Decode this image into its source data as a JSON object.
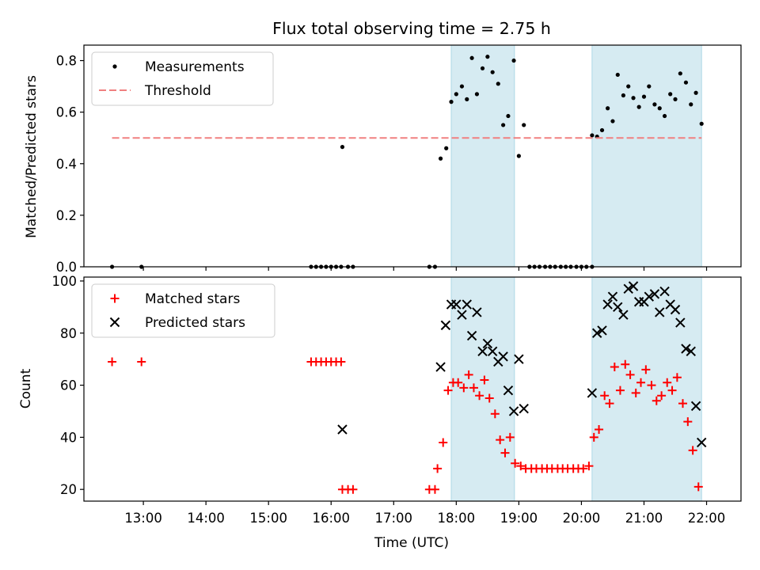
{
  "chart_data": {
    "title": "Flux total observing time = 2.75 h",
    "xlabel": "Time (UTC)",
    "xlim": [
      12.05,
      22.55
    ],
    "xticks": [
      "13:00",
      "14:00",
      "15:00",
      "16:00",
      "17:00",
      "18:00",
      "19:00",
      "20:00",
      "21:00",
      "22:00"
    ],
    "xtick_values": [
      13,
      14,
      15,
      16,
      17,
      18,
      19,
      20,
      21,
      22
    ],
    "shaded_intervals": [
      [
        17.92,
        18.93
      ],
      [
        20.17,
        21.92
      ]
    ],
    "shade_color": "#add8e6",
    "panels": [
      {
        "type": "scatter",
        "ylabel": "Matched/Predicted stars",
        "ylim": [
          0,
          0.86
        ],
        "yticks": [
          "0.0",
          "0.2",
          "0.4",
          "0.6",
          "0.8"
        ],
        "ytick_values": [
          0,
          0.2,
          0.4,
          0.6,
          0.8
        ],
        "legend_position": "upper-left",
        "series": [
          {
            "name": "Measurements",
            "kind": "dots",
            "color": "#000000",
            "points": [
              [
                12.5,
                0
              ],
              [
                12.97,
                0
              ],
              [
                15.68,
                0
              ],
              [
                15.76,
                0
              ],
              [
                15.84,
                0
              ],
              [
                15.92,
                0
              ],
              [
                16.0,
                0
              ],
              [
                16.08,
                0
              ],
              [
                16.16,
                0
              ],
              [
                16.18,
                0.465
              ],
              [
                16.27,
                0
              ],
              [
                16.35,
                0
              ],
              [
                17.57,
                0
              ],
              [
                17.66,
                0
              ],
              [
                17.75,
                0.42
              ],
              [
                17.84,
                0.46
              ],
              [
                17.92,
                0.64
              ],
              [
                18.0,
                0.67
              ],
              [
                18.09,
                0.7
              ],
              [
                18.17,
                0.65
              ],
              [
                18.25,
                0.81
              ],
              [
                18.33,
                0.67
              ],
              [
                18.42,
                0.77
              ],
              [
                18.5,
                0.815
              ],
              [
                18.58,
                0.755
              ],
              [
                18.67,
                0.71
              ],
              [
                18.75,
                0.55
              ],
              [
                18.83,
                0.585
              ],
              [
                18.92,
                0.8
              ],
              [
                19.0,
                0.43
              ],
              [
                19.08,
                0.55
              ],
              [
                19.17,
                0
              ],
              [
                19.25,
                0
              ],
              [
                19.33,
                0
              ],
              [
                19.42,
                0
              ],
              [
                19.5,
                0
              ],
              [
                19.58,
                0
              ],
              [
                19.67,
                0
              ],
              [
                19.75,
                0
              ],
              [
                19.83,
                0
              ],
              [
                19.92,
                0
              ],
              [
                20.0,
                0
              ],
              [
                20.08,
                0
              ],
              [
                20.17,
                0
              ],
              [
                20.17,
                0.51
              ],
              [
                20.25,
                0.505
              ],
              [
                20.33,
                0.53
              ],
              [
                20.42,
                0.615
              ],
              [
                20.5,
                0.565
              ],
              [
                20.58,
                0.745
              ],
              [
                20.67,
                0.665
              ],
              [
                20.75,
                0.7
              ],
              [
                20.83,
                0.655
              ],
              [
                20.92,
                0.62
              ],
              [
                21.0,
                0.66
              ],
              [
                21.08,
                0.7
              ],
              [
                21.17,
                0.63
              ],
              [
                21.25,
                0.615
              ],
              [
                21.33,
                0.585
              ],
              [
                21.42,
                0.67
              ],
              [
                21.5,
                0.65
              ],
              [
                21.58,
                0.75
              ],
              [
                21.67,
                0.715
              ],
              [
                21.75,
                0.63
              ],
              [
                21.83,
                0.675
              ],
              [
                21.92,
                0.555
              ]
            ]
          },
          {
            "name": "Threshold",
            "kind": "dashed-line",
            "color": "#f08080",
            "points": [
              [
                12.5,
                0.5
              ],
              [
                21.92,
                0.5
              ]
            ]
          }
        ]
      },
      {
        "type": "scatter",
        "ylabel": "Count",
        "ylim": [
          15.5,
          101.5
        ],
        "yticks": [
          "20",
          "40",
          "60",
          "80",
          "100"
        ],
        "ytick_values": [
          20,
          40,
          60,
          80,
          100
        ],
        "legend_position": "upper-left",
        "series": [
          {
            "name": "Matched stars",
            "kind": "plus",
            "color": "#ff0000",
            "points": [
              [
                12.5,
                69
              ],
              [
                12.97,
                69
              ],
              [
                15.68,
                69
              ],
              [
                15.76,
                69
              ],
              [
                15.84,
                69
              ],
              [
                15.92,
                69
              ],
              [
                16.0,
                69
              ],
              [
                16.08,
                69
              ],
              [
                16.16,
                69
              ],
              [
                16.18,
                20
              ],
              [
                16.27,
                20
              ],
              [
                16.35,
                20
              ],
              [
                17.57,
                20
              ],
              [
                17.66,
                20
              ],
              [
                17.7,
                28
              ],
              [
                17.79,
                38
              ],
              [
                17.87,
                58
              ],
              [
                17.95,
                61
              ],
              [
                18.03,
                61
              ],
              [
                18.12,
                59
              ],
              [
                18.2,
                64
              ],
              [
                18.28,
                59
              ],
              [
                18.37,
                56
              ],
              [
                18.45,
                62
              ],
              [
                18.53,
                55
              ],
              [
                18.62,
                49
              ],
              [
                18.7,
                39
              ],
              [
                18.78,
                34
              ],
              [
                18.86,
                40
              ],
              [
                18.94,
                30
              ],
              [
                19.03,
                29
              ],
              [
                19.11,
                28
              ],
              [
                19.2,
                28
              ],
              [
                19.28,
                28
              ],
              [
                19.37,
                28
              ],
              [
                19.45,
                28
              ],
              [
                19.53,
                28
              ],
              [
                19.62,
                28
              ],
              [
                19.7,
                28
              ],
              [
                19.78,
                28
              ],
              [
                19.87,
                28
              ],
              [
                19.95,
                28
              ],
              [
                20.03,
                28
              ],
              [
                20.12,
                29
              ],
              [
                20.2,
                40
              ],
              [
                20.28,
                43
              ],
              [
                20.37,
                56
              ],
              [
                20.45,
                53
              ],
              [
                20.53,
                67
              ],
              [
                20.62,
                58
              ],
              [
                20.7,
                68
              ],
              [
                20.78,
                64
              ],
              [
                20.87,
                57
              ],
              [
                20.95,
                61
              ],
              [
                21.03,
                66
              ],
              [
                21.12,
                60
              ],
              [
                21.2,
                54
              ],
              [
                21.28,
                56
              ],
              [
                21.37,
                61
              ],
              [
                21.45,
                58
              ],
              [
                21.53,
                63
              ],
              [
                21.62,
                53
              ],
              [
                21.7,
                46
              ],
              [
                21.78,
                35
              ],
              [
                21.87,
                21
              ]
            ]
          },
          {
            "name": "Predicted stars",
            "kind": "x",
            "color": "#000000",
            "points": [
              [
                16.18,
                43
              ],
              [
                17.75,
                67
              ],
              [
                17.83,
                83
              ],
              [
                17.92,
                91
              ],
              [
                18.0,
                91
              ],
              [
                18.09,
                87
              ],
              [
                18.17,
                91
              ],
              [
                18.25,
                79
              ],
              [
                18.33,
                88
              ],
              [
                18.42,
                73
              ],
              [
                18.5,
                76
              ],
              [
                18.58,
                73
              ],
              [
                18.67,
                69
              ],
              [
                18.75,
                71
              ],
              [
                18.83,
                58
              ],
              [
                18.92,
                50
              ],
              [
                19.0,
                70
              ],
              [
                19.08,
                51
              ],
              [
                20.17,
                57
              ],
              [
                20.25,
                80
              ],
              [
                20.33,
                81
              ],
              [
                20.42,
                91
              ],
              [
                20.5,
                94
              ],
              [
                20.58,
                90
              ],
              [
                20.67,
                87
              ],
              [
                20.75,
                97
              ],
              [
                20.83,
                98
              ],
              [
                20.92,
                92
              ],
              [
                21.0,
                92
              ],
              [
                21.08,
                94
              ],
              [
                21.17,
                95
              ],
              [
                21.25,
                88
              ],
              [
                21.33,
                96
              ],
              [
                21.42,
                91
              ],
              [
                21.5,
                89
              ],
              [
                21.58,
                84
              ],
              [
                21.67,
                74
              ],
              [
                21.75,
                73
              ],
              [
                21.83,
                52
              ],
              [
                21.92,
                38
              ]
            ]
          }
        ]
      }
    ]
  }
}
